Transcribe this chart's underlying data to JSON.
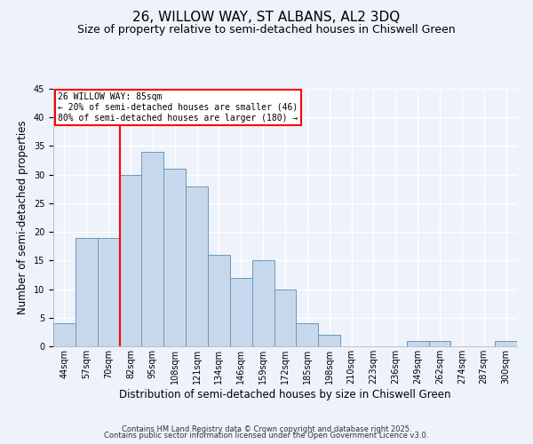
{
  "title": "26, WILLOW WAY, ST ALBANS, AL2 3DQ",
  "subtitle": "Size of property relative to semi-detached houses in Chiswell Green",
  "xlabel": "Distribution of semi-detached houses by size in Chiswell Green",
  "ylabel": "Number of semi-detached properties",
  "bar_labels": [
    "44sqm",
    "57sqm",
    "70sqm",
    "82sqm",
    "95sqm",
    "108sqm",
    "121sqm",
    "134sqm",
    "146sqm",
    "159sqm",
    "172sqm",
    "185sqm",
    "198sqm",
    "210sqm",
    "223sqm",
    "236sqm",
    "249sqm",
    "262sqm",
    "274sqm",
    "287sqm",
    "300sqm"
  ],
  "bar_values": [
    4,
    19,
    19,
    30,
    34,
    31,
    28,
    16,
    12,
    15,
    10,
    4,
    2,
    0,
    0,
    0,
    1,
    1,
    0,
    0,
    1
  ],
  "bar_color": "#c8d8ec",
  "bar_edgecolor": "#6699bb",
  "ylim": [
    0,
    45
  ],
  "yticks": [
    0,
    5,
    10,
    15,
    20,
    25,
    30,
    35,
    40,
    45
  ],
  "property_line_x": 3.0,
  "annotation_title": "26 WILLOW WAY: 85sqm",
  "annotation_line1": "← 20% of semi-detached houses are smaller (46)",
  "annotation_line2": "80% of semi-detached houses are larger (180) →",
  "footer_line1": "Contains HM Land Registry data © Crown copyright and database right 2025.",
  "footer_line2": "Contains public sector information licensed under the Open Government Licence v3.0.",
  "background_color": "#eef2fa",
  "grid_color": "#ffffff",
  "title_fontsize": 11,
  "subtitle_fontsize": 9,
  "axis_label_fontsize": 8.5,
  "tick_fontsize": 7,
  "footer_fontsize": 6
}
